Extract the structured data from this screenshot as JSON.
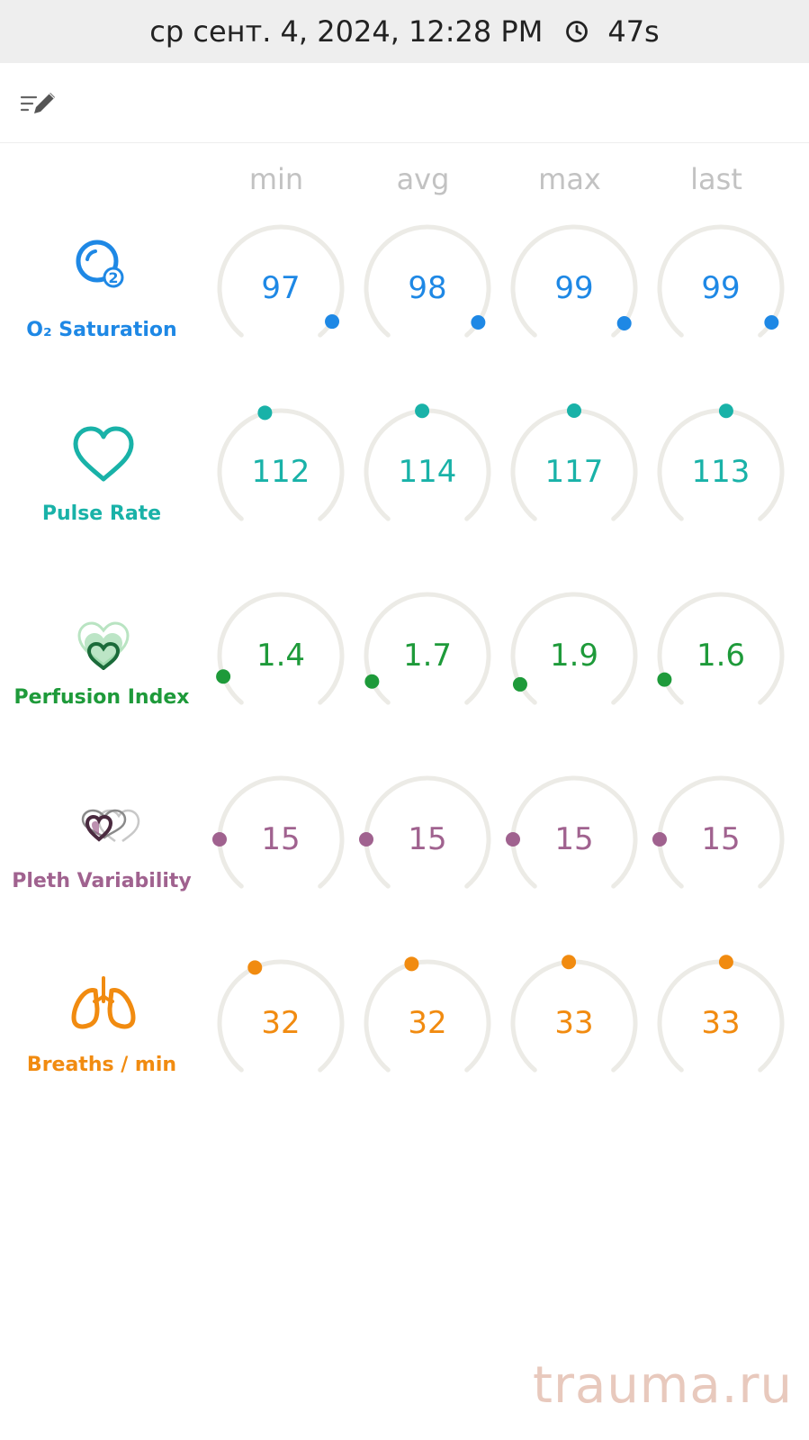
{
  "status_bar": {
    "datetime": "ср сент. 4, 2024, 12:28 PM",
    "duration": "47s"
  },
  "columns": [
    "min",
    "avg",
    "max",
    "last"
  ],
  "metrics": [
    {
      "name": "O₂ Saturation",
      "color": "#1e88e5",
      "icon": "o2-bubble-icon",
      "values": [
        "97",
        "98",
        "99",
        "99"
      ]
    },
    {
      "name": "Pulse Rate",
      "color": "#19b2a8",
      "icon": "heart-outline-icon",
      "values": [
        "112",
        "114",
        "117",
        "113"
      ]
    },
    {
      "name": "Perfusion Index",
      "color": "#1e9a3a",
      "icon": "perfusion-hearts-icon",
      "values": [
        "1.4",
        "1.7",
        "1.9",
        "1.6"
      ]
    },
    {
      "name": "Pleth Variability",
      "color": "#a0628f",
      "icon": "pleth-hearts-icon",
      "values": [
        "15",
        "15",
        "15",
        "15"
      ]
    },
    {
      "name": "Breaths / min",
      "color": "#f18b10",
      "icon": "lungs-icon",
      "values": [
        "32",
        "32",
        "33",
        "33"
      ]
    }
  ],
  "watermark": "trauma.ru"
}
